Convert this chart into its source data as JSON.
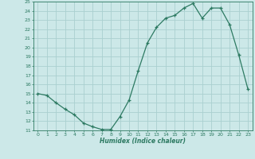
{
  "x": [
    0,
    1,
    2,
    3,
    4,
    5,
    6,
    7,
    8,
    9,
    10,
    11,
    12,
    13,
    14,
    15,
    16,
    17,
    18,
    19,
    20,
    21,
    22,
    23
  ],
  "y": [
    15.0,
    14.8,
    14.0,
    13.3,
    12.7,
    11.8,
    11.4,
    11.1,
    11.1,
    12.5,
    14.3,
    17.5,
    20.5,
    22.2,
    23.2,
    23.5,
    24.3,
    24.8,
    23.2,
    24.3,
    24.3,
    22.5,
    19.2,
    15.5
  ],
  "ylim": [
    11,
    25
  ],
  "xlim": [
    -0.5,
    23.5
  ],
  "yticks": [
    11,
    12,
    13,
    14,
    15,
    16,
    17,
    18,
    19,
    20,
    21,
    22,
    23,
    24,
    25
  ],
  "xticks": [
    0,
    1,
    2,
    3,
    4,
    5,
    6,
    7,
    8,
    9,
    10,
    11,
    12,
    13,
    14,
    15,
    16,
    17,
    18,
    19,
    20,
    21,
    22,
    23
  ],
  "xlabel": "Humidex (Indice chaleur)",
  "line_color": "#2d7a62",
  "marker": "+",
  "bg_color": "#cce8e8",
  "grid_color_major": "#aad0d0",
  "grid_color_minor": "#bbdede"
}
